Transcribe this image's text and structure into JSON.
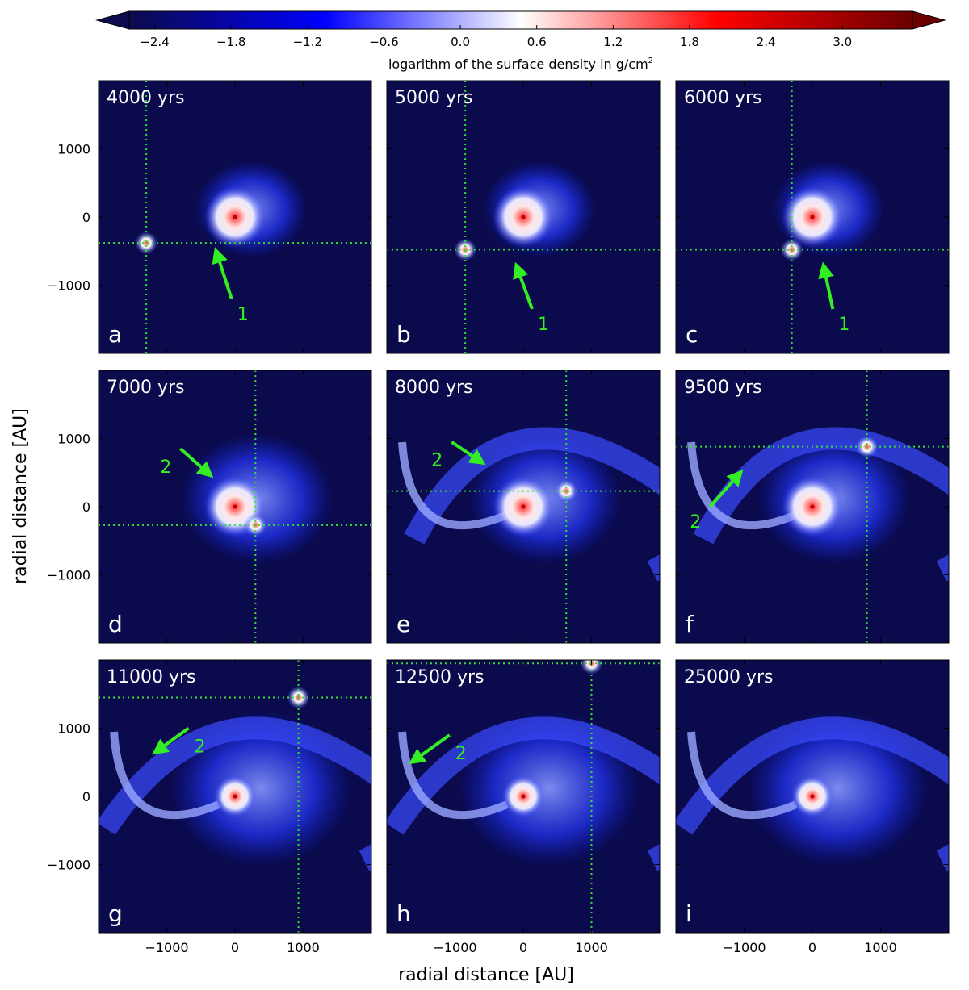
{
  "colorbar": {
    "ticks": [
      "−2.4",
      "−1.8",
      "−1.2",
      "−0.6",
      "0.0",
      "0.6",
      "1.2",
      "1.8",
      "2.4",
      "3.0"
    ],
    "tick_values": [
      -2.4,
      -1.8,
      -1.2,
      -0.6,
      0.0,
      0.6,
      1.2,
      1.8,
      2.4,
      3.0
    ],
    "range": [
      -2.6,
      3.55
    ],
    "label": "logarithm of the surface density in g/cm",
    "label_sup": "2",
    "colors": [
      "#0b0b4d",
      "#0000ff",
      "#ffffff",
      "#ff0000",
      "#6b0000"
    ]
  },
  "axes": {
    "xlabel": "radial distance [AU]",
    "ylabel": "radial distance [AU]",
    "y_ticks": [
      "1000",
      "0",
      "−1000"
    ],
    "x_ticks": [
      "−1000",
      "0",
      "1000"
    ],
    "xlim": [
      -2000,
      2000
    ],
    "ylim": [
      -2000,
      2000
    ]
  },
  "style": {
    "background": "#0a0a4c",
    "guide_color": "#33dd33",
    "annotation_color": "#33ee22"
  },
  "chart_data": {
    "type": "heatmap",
    "panels": [
      {
        "letter": "a",
        "time": "4000 yrs",
        "guide": {
          "x": -1300,
          "y": -380
        },
        "arrow": {
          "label": "1",
          "from": [
            -50,
            -1200
          ],
          "to": [
            -270,
            -520
          ]
        }
      },
      {
        "letter": "b",
        "time": "5000 yrs",
        "guide": {
          "x": -850,
          "y": -480
        },
        "arrow": {
          "label": "1",
          "from": [
            130,
            -1350
          ],
          "to": [
            -90,
            -740
          ]
        }
      },
      {
        "letter": "c",
        "time": "6000 yrs",
        "guide": {
          "x": -300,
          "y": -480
        },
        "arrow": {
          "label": "1",
          "from": [
            300,
            -1350
          ],
          "to": [
            170,
            -740
          ]
        }
      },
      {
        "letter": "d",
        "time": "7000 yrs",
        "guide": {
          "x": 300,
          "y": -270
        },
        "arrow": {
          "label": "2",
          "from": [
            -800,
            850
          ],
          "to": [
            -380,
            480
          ]
        }
      },
      {
        "letter": "e",
        "time": "8000 yrs",
        "guide": {
          "x": 630,
          "y": 230
        },
        "arrow": {
          "label": "2",
          "from": [
            -1050,
            950
          ],
          "to": [
            -620,
            660
          ]
        }
      },
      {
        "letter": "f",
        "time": "9500 yrs",
        "guide": {
          "x": 800,
          "y": 880
        },
        "arrow": {
          "label": "2",
          "from": [
            -1500,
            0
          ],
          "to": [
            -1070,
            480
          ]
        }
      },
      {
        "letter": "g",
        "time": "11000 yrs",
        "guide": {
          "x": 930,
          "y": 1450
        },
        "arrow": {
          "label": "2",
          "from": [
            -680,
            1000
          ],
          "to": [
            -1150,
            660
          ]
        }
      },
      {
        "letter": "h",
        "time": "12500 yrs",
        "guide": {
          "x": 1000,
          "y": 1950
        },
        "arrow": {
          "label": "2",
          "from": [
            -1080,
            900
          ],
          "to": [
            -1610,
            520
          ]
        }
      },
      {
        "letter": "i",
        "time": "25000 yrs",
        "guide": null,
        "arrow": null
      }
    ]
  }
}
